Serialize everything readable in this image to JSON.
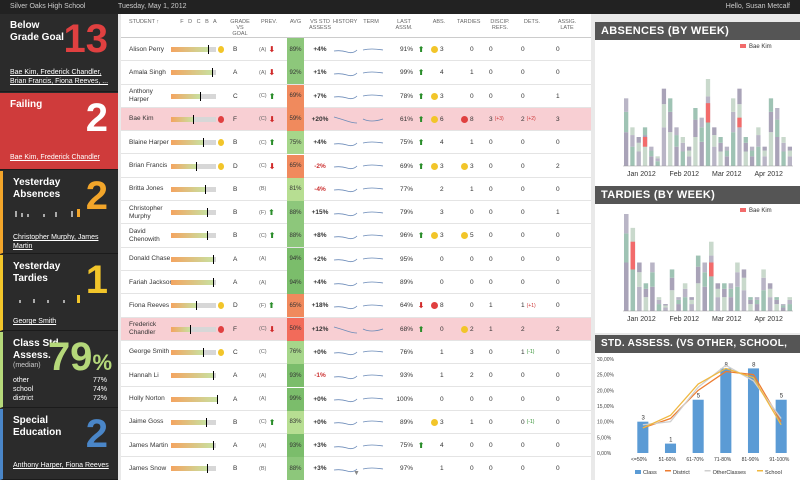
{
  "topbar": {
    "school": "Silver Oaks High School",
    "date": "Tuesday, May 1, 2012",
    "greeting": "Hello, Susan Metcalf"
  },
  "sidebar": {
    "tiles": [
      {
        "title": "Below Grade Goal",
        "count": "13",
        "color": "#2b2b2b",
        "num_color": "#e04040",
        "names": "Bae Kim, Frederick Chandler, Brian Francis, Fiona Reeves, ..."
      },
      {
        "title": "Failing",
        "count": "2",
        "color": "#cf3b3b",
        "num_color": "#ffffff",
        "names": "Bae Kim, Frederick Chandler"
      },
      {
        "title": "Yesterday Absences",
        "count": "2",
        "color": "#2b2b2b",
        "num_color": "#f2a52a",
        "names": "Christopher Murphy, James Martin"
      },
      {
        "title": "Yesterday Tardies",
        "count": "1",
        "color": "#2b2b2b",
        "num_color": "#f2c52a",
        "names": "George Smith"
      },
      {
        "title": "Class Std. Assess.",
        "subtitle": "(median)",
        "count": "79",
        "unit": "%",
        "color": "#2b2b2b",
        "num_color": "#b5d87a",
        "stats": [
          {
            "label": "other",
            "value": "77%"
          },
          {
            "label": "school",
            "value": "74%"
          },
          {
            "label": "district",
            "value": "72%"
          }
        ]
      },
      {
        "title": "Special Education",
        "count": "2",
        "color": "#2b2b2b",
        "num_color": "#4a86c8",
        "names": "Anthony Harper, Fiona Reeves"
      }
    ]
  },
  "roster": {
    "headers": {
      "student": "STUDENT ↑",
      "grades": "F D C B A",
      "grade_goal": "GRADE VS GOAL",
      "prev": "PREV.",
      "avg": "AVG",
      "vs_std": "VS STD ASSESS",
      "history": "HISTORY",
      "term": "TERM",
      "last_assm": "LAST ASSM.",
      "abs": "ABS.",
      "tardies": "TARDIES",
      "discip": "DISCIP. REFS.",
      "dets": "DETS.",
      "assm_late": "ASSIG. LATE"
    },
    "rows": [
      {
        "name": "Alison Perry",
        "grade": "B",
        "prev": "(A)",
        "dir": "down",
        "avg": "89%",
        "avg_color": "#8dc77b",
        "vs": "+4%",
        "last": "91%",
        "last_dir": "up",
        "abs": "3",
        "abs_c": "#f2c52a",
        "tar": "0",
        "tar_c": "",
        "dis": "0",
        "det": "0",
        "late": "0",
        "hl": false,
        "fill": 0.78,
        "mood": "#f2c52a"
      },
      {
        "name": "Amala Singh",
        "grade": "A",
        "prev": "(A)",
        "dir": "down",
        "avg": "92%",
        "avg_color": "#8dc77b",
        "vs": "+1%",
        "last": "99%",
        "last_dir": "up",
        "abs": "4",
        "abs_c": "",
        "tar": "1",
        "tar_c": "",
        "dis": "0",
        "det": "0",
        "late": "0",
        "hl": false,
        "fill": 0.85,
        "mood": ""
      },
      {
        "name": "Anthony Harper",
        "grade": "C",
        "prev": "(C)",
        "dir": "up",
        "avg": "69%",
        "avg_color": "#f08a5d",
        "vs": "+7%",
        "last": "78%",
        "last_dir": "up",
        "abs": "3",
        "abs_c": "#f2c52a",
        "tar": "0",
        "tar_c": "",
        "dis": "0",
        "det": "0",
        "late": "1",
        "hl": false,
        "fill": 0.6,
        "mood": ""
      },
      {
        "name": "Bae Kim",
        "grade": "F",
        "prev": "(C)",
        "dir": "down",
        "avg": "59%",
        "avg_color": "#f08a5d",
        "vs": "+20%",
        "last": "61%",
        "last_dir": "up",
        "abs": "6",
        "abs_c": "#f2c52a",
        "tar": "8",
        "tar_c": "#e04040",
        "dis": "3",
        "det": "2",
        "late": "3",
        "hl": true,
        "fill": 0.45,
        "mood": "#e04040",
        "dis_b": "(+3)",
        "det_b": "(+2)"
      },
      {
        "name": "Blaine Harper",
        "grade": "B",
        "prev": "(C)",
        "dir": "up",
        "avg": "75%",
        "avg_color": "#a6d68a",
        "vs": "+4%",
        "last": "75%",
        "last_dir": "up",
        "abs": "4",
        "abs_c": "",
        "tar": "1",
        "tar_c": "",
        "dis": "0",
        "det": "0",
        "late": "0",
        "hl": false,
        "fill": 0.66,
        "mood": "#f2c52a"
      },
      {
        "name": "Brian Francis",
        "grade": "D",
        "prev": "(C)",
        "dir": "down",
        "avg": "65%",
        "avg_color": "#f08a5d",
        "vs": "-2%",
        "last": "69%",
        "last_dir": "up",
        "abs": "3",
        "abs_c": "#f2c52a",
        "tar": "3",
        "tar_c": "#f2c52a",
        "dis": "0",
        "det": "0",
        "late": "2",
        "hl": false,
        "fill": 0.52,
        "mood": "#f2c52a"
      },
      {
        "name": "Britta Jones",
        "grade": "B",
        "prev": "(B)",
        "dir": "",
        "avg": "81%",
        "avg_color": "#b7de92",
        "vs": "-4%",
        "last": "77%",
        "last_dir": "",
        "abs": "2",
        "abs_c": "",
        "tar": "1",
        "tar_c": "",
        "dis": "0",
        "det": "0",
        "late": "0",
        "hl": false,
        "fill": 0.7,
        "mood": ""
      },
      {
        "name": "Christopher Murphy",
        "grade": "B",
        "prev": "(F)",
        "dir": "up",
        "avg": "88%",
        "avg_color": "#8dc77b",
        "vs": "+15%",
        "last": "79%",
        "last_dir": "",
        "abs": "3",
        "abs_c": "",
        "tar": "0",
        "tar_c": "",
        "dis": "0",
        "det": "0",
        "late": "1",
        "hl": false,
        "fill": 0.74,
        "mood": ""
      },
      {
        "name": "David Chenowith",
        "grade": "B",
        "prev": "(C)",
        "dir": "up",
        "avg": "88%",
        "avg_color": "#8dc77b",
        "vs": "+8%",
        "last": "96%",
        "last_dir": "up",
        "abs": "3",
        "abs_c": "#f2c52a",
        "tar": "5",
        "tar_c": "#f2c52a",
        "dis": "0",
        "det": "0",
        "late": "0",
        "hl": false,
        "fill": 0.74,
        "mood": ""
      },
      {
        "name": "Donald Chase",
        "grade": "A",
        "prev": "(A)",
        "dir": "",
        "avg": "94%",
        "avg_color": "#7bbd6b",
        "vs": "+2%",
        "last": "95%",
        "last_dir": "",
        "abs": "0",
        "abs_c": "",
        "tar": "0",
        "tar_c": "",
        "dis": "0",
        "det": "0",
        "late": "0",
        "hl": false,
        "fill": 0.88,
        "mood": ""
      },
      {
        "name": "Fariah Jackson",
        "grade": "A",
        "prev": "(A)",
        "dir": "",
        "avg": "94%",
        "avg_color": "#7bbd6b",
        "vs": "+4%",
        "last": "89%",
        "last_dir": "",
        "abs": "0",
        "abs_c": "",
        "tar": "0",
        "tar_c": "",
        "dis": "0",
        "det": "0",
        "late": "0",
        "hl": false,
        "fill": 0.88,
        "mood": ""
      },
      {
        "name": "Fiona Reeves",
        "grade": "D",
        "prev": "(F)",
        "dir": "up",
        "avg": "65%",
        "avg_color": "#f08a5d",
        "vs": "+18%",
        "last": "64%",
        "last_dir": "down",
        "abs": "8",
        "abs_c": "#e04040",
        "tar": "0",
        "tar_c": "",
        "dis": "1",
        "det": "1",
        "late": "0",
        "hl": false,
        "fill": 0.52,
        "mood": "#f2c52a",
        "det_b": "(+1)"
      },
      {
        "name": "Frederick Chandler",
        "grade": "F",
        "prev": "(C)",
        "dir": "down",
        "avg": "50%",
        "avg_color": "#f26b5a",
        "vs": "+12%",
        "last": "68%",
        "last_dir": "up",
        "abs": "0",
        "abs_c": "",
        "tar": "2",
        "tar_c": "#f2c52a",
        "dis": "1",
        "det": "2",
        "late": "2",
        "hl": true,
        "fill": 0.4,
        "mood": "#e04040"
      },
      {
        "name": "George Smith",
        "grade": "C",
        "prev": "(C)",
        "dir": "",
        "avg": "76%",
        "avg_color": "#a6d68a",
        "vs": "+0%",
        "last": "76%",
        "last_dir": "",
        "abs": "1",
        "abs_c": "",
        "tar": "3",
        "tar_c": "",
        "dis": "0",
        "det": "1",
        "late": "0",
        "hl": false,
        "fill": 0.66,
        "mood": "#f2c52a",
        "det_b": "(-1)"
      },
      {
        "name": "Hannah Li",
        "grade": "A",
        "prev": "(A)",
        "dir": "",
        "avg": "93%",
        "avg_color": "#7bbd6b",
        "vs": "-1%",
        "last": "93%",
        "last_dir": "",
        "abs": "1",
        "abs_c": "",
        "tar": "2",
        "tar_c": "",
        "dis": "0",
        "det": "0",
        "late": "0",
        "hl": false,
        "fill": 0.87,
        "mood": ""
      },
      {
        "name": "Holly Norton",
        "grade": "A",
        "prev": "(A)",
        "dir": "",
        "avg": "99%",
        "avg_color": "#7bbd6b",
        "vs": "+0%",
        "last": "100%",
        "last_dir": "",
        "abs": "0",
        "abs_c": "",
        "tar": "0",
        "tar_c": "",
        "dis": "0",
        "det": "0",
        "late": "0",
        "hl": false,
        "fill": 0.95,
        "mood": ""
      },
      {
        "name": "Jaime Goss",
        "grade": "B",
        "prev": "(C)",
        "dir": "up",
        "avg": "83%",
        "avg_color": "#b7de92",
        "vs": "+0%",
        "last": "89%",
        "last_dir": "",
        "abs": "3",
        "abs_c": "#f2c52a",
        "tar": "1",
        "tar_c": "",
        "dis": "0",
        "det": "0",
        "late": "0",
        "hl": false,
        "fill": 0.72,
        "mood": "",
        "det_b": "(-1)"
      },
      {
        "name": "James Martin",
        "grade": "A",
        "prev": "(A)",
        "dir": "",
        "avg": "93%",
        "avg_color": "#7bbd6b",
        "vs": "+3%",
        "last": "75%",
        "last_dir": "up",
        "abs": "4",
        "abs_c": "",
        "tar": "0",
        "tar_c": "",
        "dis": "0",
        "det": "0",
        "late": "0",
        "hl": false,
        "fill": 0.87,
        "mood": ""
      },
      {
        "name": "James Snow",
        "grade": "B",
        "prev": "(B)",
        "dir": "",
        "avg": "88%",
        "avg_color": "#8dc77b",
        "vs": "+3%",
        "last": "97%",
        "last_dir": "",
        "abs": "1",
        "abs_c": "",
        "tar": "0",
        "tar_c": "",
        "dis": "0",
        "det": "0",
        "late": "0",
        "hl": false,
        "fill": 0.74,
        "mood": ""
      }
    ]
  },
  "chart_data": [
    {
      "type": "bar",
      "title": "ABSENCES (BY WEEK)",
      "legend": [
        "Bae Kim"
      ],
      "x_labels": [
        "Jan 2012",
        "Feb 2012",
        "Mar 2012",
        "Apr 2012"
      ],
      "ylim": [
        0,
        6
      ],
      "values": [
        3.5,
        2,
        1.5,
        2,
        1,
        0.5,
        4,
        3.5,
        2,
        1.5,
        1,
        3,
        2.5,
        4.5,
        2,
        1.5,
        1,
        3.5,
        4,
        1.5,
        1,
        2,
        1,
        3.5,
        3,
        1.5,
        1
      ],
      "highlight": [
        0,
        0,
        0,
        0.5,
        0,
        0,
        0,
        0,
        0,
        0,
        0,
        0,
        0,
        1,
        0,
        0,
        0,
        0,
        0.5,
        0,
        0,
        0,
        0,
        0,
        0,
        0,
        0
      ]
    },
    {
      "type": "bar",
      "title": "TARDIES (BY WEEK)",
      "legend": [
        "Bae Kim"
      ],
      "x_labels": [
        "Jan 2012",
        "Feb 2012",
        "Mar 2012",
        "Apr 2012"
      ],
      "ylim": [
        0,
        7
      ],
      "values": [
        7,
        6,
        3.5,
        2,
        3.5,
        1,
        0.5,
        3,
        1,
        2,
        1,
        4,
        3.5,
        5,
        2,
        2,
        2,
        3.5,
        3,
        1,
        1,
        3,
        2,
        1,
        0.5,
        1
      ],
      "highlight": [
        0,
        2,
        0,
        0,
        0,
        0,
        0,
        0,
        0,
        0,
        0,
        0,
        0,
        1,
        0,
        0,
        0,
        0,
        0,
        0,
        0,
        0,
        0,
        0,
        0,
        0
      ]
    },
    {
      "type": "bar",
      "title": "STD. ASSESS. (VS OTHER, SCHOOL, DISTRICT)",
      "categories": [
        "<=50%",
        "51-60%",
        "61-70%",
        "71-80%",
        "81-90%",
        "91-100%"
      ],
      "y_ticks": [
        "30,00%",
        "25,00%",
        "20,00%",
        "15,00%",
        "10,00%",
        "5,00%",
        "0,00%"
      ],
      "ylim": [
        0,
        30
      ],
      "series": [
        {
          "name": "Class",
          "values": [
            10,
            3,
            17,
            27,
            27,
            17
          ]
        },
        {
          "name": "District",
          "values": [
            8,
            11,
            20,
            26,
            25,
            10
          ]
        },
        {
          "name": "OtherClasses",
          "values": [
            9,
            10,
            21,
            28,
            23,
            11
          ]
        },
        {
          "name": "School",
          "values": [
            8,
            12,
            22,
            27,
            24,
            9
          ]
        }
      ],
      "bar_labels": [
        "3",
        "1",
        "5",
        "8",
        "8",
        "5"
      ]
    }
  ]
}
